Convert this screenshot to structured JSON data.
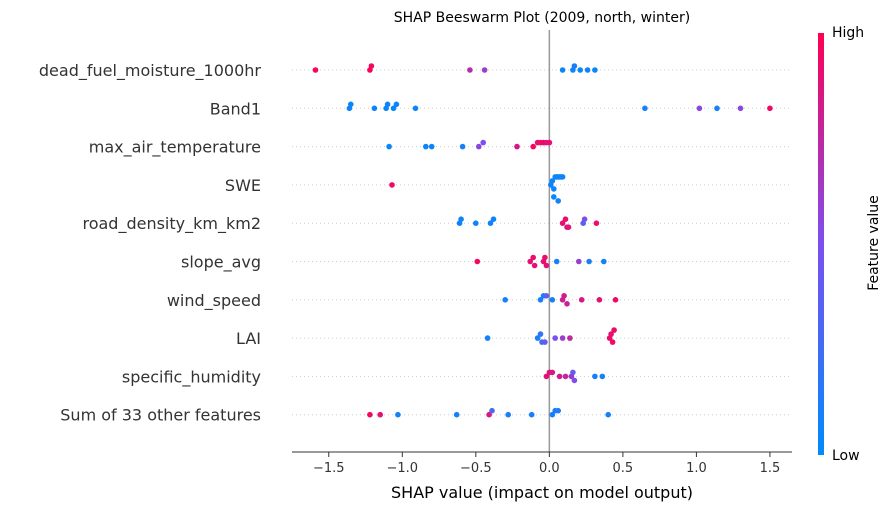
{
  "chart_data": {
    "type": "scatter",
    "title": "SHAP Beeswarm Plot (2009, north, winter)",
    "xlabel": "SHAP value (impact on model output)",
    "ylabel": "",
    "xlim": [
      -1.75,
      1.65
    ],
    "xticks": [
      -1.5,
      -1.0,
      -0.5,
      0.0,
      0.5,
      1.0,
      1.5
    ],
    "xtick_labels": [
      "−1.5",
      "−1.0",
      "−0.5",
      "0.0",
      "0.5",
      "1.0",
      "1.5"
    ],
    "grid": false,
    "colorbar": {
      "label": "Feature value",
      "high_label": "High",
      "low_label": "Low",
      "low_color": "#008bfb",
      "mid_color": "#7d4ff0",
      "high_color": "#ff0052"
    },
    "features": [
      {
        "name": "dead_fuel_moisture_1000hr",
        "points": [
          {
            "x": -1.59,
            "v": 1.0
          },
          {
            "x": -1.22,
            "v": 0.98
          },
          {
            "x": -1.21,
            "v": 0.96
          },
          {
            "x": -0.54,
            "v": 0.72
          },
          {
            "x": -0.44,
            "v": 0.62
          },
          {
            "x": 0.09,
            "v": 0.05
          },
          {
            "x": 0.16,
            "v": 0.06
          },
          {
            "x": 0.17,
            "v": 0.1
          },
          {
            "x": 0.21,
            "v": 0.04
          },
          {
            "x": 0.26,
            "v": 0.08
          },
          {
            "x": 0.31,
            "v": 0.03
          }
        ]
      },
      {
        "name": "Band1",
        "points": [
          {
            "x": -1.36,
            "v": 0.05
          },
          {
            "x": -1.35,
            "v": 0.04
          },
          {
            "x": -1.19,
            "v": 0.06
          },
          {
            "x": -1.11,
            "v": 0.05
          },
          {
            "x": -1.1,
            "v": 0.04
          },
          {
            "x": -1.06,
            "v": 0.03
          },
          {
            "x": -1.04,
            "v": 0.06
          },
          {
            "x": -0.91,
            "v": 0.05
          },
          {
            "x": 0.65,
            "v": 0.1
          },
          {
            "x": 1.02,
            "v": 0.55
          },
          {
            "x": 1.14,
            "v": 0.1
          },
          {
            "x": 1.3,
            "v": 0.55
          },
          {
            "x": 1.5,
            "v": 0.95
          }
        ]
      },
      {
        "name": "max_air_temperature",
        "points": [
          {
            "x": -1.09,
            "v": 0.05
          },
          {
            "x": -0.84,
            "v": 0.06
          },
          {
            "x": -0.8,
            "v": 0.05
          },
          {
            "x": -0.59,
            "v": 0.08
          },
          {
            "x": -0.48,
            "v": 0.55
          },
          {
            "x": -0.45,
            "v": 0.5
          },
          {
            "x": -0.22,
            "v": 0.85
          },
          {
            "x": -0.11,
            "v": 0.95
          },
          {
            "x": -0.08,
            "v": 0.92
          },
          {
            "x": -0.06,
            "v": 0.9
          },
          {
            "x": -0.04,
            "v": 0.95
          },
          {
            "x": -0.02,
            "v": 0.88
          },
          {
            "x": 0.0,
            "v": 0.9
          }
        ]
      },
      {
        "name": "SWE",
        "points": [
          {
            "x": -1.07,
            "v": 0.95
          },
          {
            "x": 0.01,
            "v": 0.06
          },
          {
            "x": 0.02,
            "v": 0.04
          },
          {
            "x": 0.03,
            "v": 0.05
          },
          {
            "x": 0.04,
            "v": 0.06
          },
          {
            "x": 0.05,
            "v": 0.05
          },
          {
            "x": 0.06,
            "v": 0.04
          },
          {
            "x": 0.07,
            "v": 0.06
          },
          {
            "x": 0.08,
            "v": 0.05
          },
          {
            "x": 0.09,
            "v": 0.06
          },
          {
            "x": 0.03,
            "v": 0.03
          },
          {
            "x": 0.06,
            "v": 0.07
          }
        ]
      },
      {
        "name": "road_density_km_km2",
        "points": [
          {
            "x": -0.61,
            "v": 0.05
          },
          {
            "x": -0.6,
            "v": 0.06
          },
          {
            "x": -0.5,
            "v": 0.05
          },
          {
            "x": -0.4,
            "v": 0.06
          },
          {
            "x": -0.38,
            "v": 0.05
          },
          {
            "x": 0.09,
            "v": 0.9
          },
          {
            "x": 0.11,
            "v": 0.92
          },
          {
            "x": 0.12,
            "v": 0.85
          },
          {
            "x": 0.13,
            "v": 0.88
          },
          {
            "x": 0.23,
            "v": 0.35
          },
          {
            "x": 0.24,
            "v": 0.5
          },
          {
            "x": 0.32,
            "v": 0.92
          }
        ]
      },
      {
        "name": "slope_avg",
        "points": [
          {
            "x": -0.49,
            "v": 0.95
          },
          {
            "x": -0.13,
            "v": 0.9
          },
          {
            "x": -0.11,
            "v": 0.92
          },
          {
            "x": -0.1,
            "v": 0.88
          },
          {
            "x": -0.04,
            "v": 0.9
          },
          {
            "x": -0.03,
            "v": 0.92
          },
          {
            "x": -0.02,
            "v": 0.9
          },
          {
            "x": 0.05,
            "v": 0.1
          },
          {
            "x": 0.2,
            "v": 0.6
          },
          {
            "x": 0.27,
            "v": 0.1
          },
          {
            "x": 0.37,
            "v": 0.08
          }
        ]
      },
      {
        "name": "wind_speed",
        "points": [
          {
            "x": -0.3,
            "v": 0.08
          },
          {
            "x": -0.06,
            "v": 0.1
          },
          {
            "x": -0.04,
            "v": 0.12
          },
          {
            "x": -0.02,
            "v": 0.35
          },
          {
            "x": 0.02,
            "v": 0.1
          },
          {
            "x": 0.09,
            "v": 0.8
          },
          {
            "x": 0.1,
            "v": 0.82
          },
          {
            "x": 0.12,
            "v": 0.78
          },
          {
            "x": 0.22,
            "v": 0.85
          },
          {
            "x": 0.34,
            "v": 0.9
          },
          {
            "x": 0.45,
            "v": 0.95
          }
        ]
      },
      {
        "name": "LAI",
        "points": [
          {
            "x": -0.42,
            "v": 0.08
          },
          {
            "x": -0.08,
            "v": 0.1
          },
          {
            "x": -0.06,
            "v": 0.2
          },
          {
            "x": -0.05,
            "v": 0.25
          },
          {
            "x": -0.03,
            "v": 0.4
          },
          {
            "x": 0.04,
            "v": 0.5
          },
          {
            "x": 0.09,
            "v": 0.6
          },
          {
            "x": 0.14,
            "v": 0.75
          },
          {
            "x": 0.41,
            "v": 0.92
          },
          {
            "x": 0.42,
            "v": 0.9
          },
          {
            "x": 0.43,
            "v": 0.95
          },
          {
            "x": 0.44,
            "v": 0.93
          }
        ]
      },
      {
        "name": "specific_humidity",
        "points": [
          {
            "x": -0.02,
            "v": 0.9
          },
          {
            "x": 0.0,
            "v": 0.88
          },
          {
            "x": 0.02,
            "v": 0.85
          },
          {
            "x": 0.07,
            "v": 0.82
          },
          {
            "x": 0.11,
            "v": 0.75
          },
          {
            "x": 0.15,
            "v": 0.65
          },
          {
            "x": 0.16,
            "v": 0.4
          },
          {
            "x": 0.17,
            "v": 0.5
          },
          {
            "x": 0.31,
            "v": 0.1
          },
          {
            "x": 0.36,
            "v": 0.08
          }
        ]
      },
      {
        "name": "Sum of 33 other features",
        "points": [
          {
            "x": -1.22,
            "v": 0.95
          },
          {
            "x": -1.15,
            "v": 0.9
          },
          {
            "x": -1.03,
            "v": 0.08
          },
          {
            "x": -0.63,
            "v": 0.1
          },
          {
            "x": -0.41,
            "v": 0.85
          },
          {
            "x": -0.39,
            "v": 0.3
          },
          {
            "x": -0.28,
            "v": 0.08
          },
          {
            "x": -0.12,
            "v": 0.1
          },
          {
            "x": 0.02,
            "v": 0.1
          },
          {
            "x": 0.04,
            "v": 0.08
          },
          {
            "x": 0.06,
            "v": 0.12
          },
          {
            "x": 0.4,
            "v": 0.1
          }
        ]
      }
    ]
  }
}
